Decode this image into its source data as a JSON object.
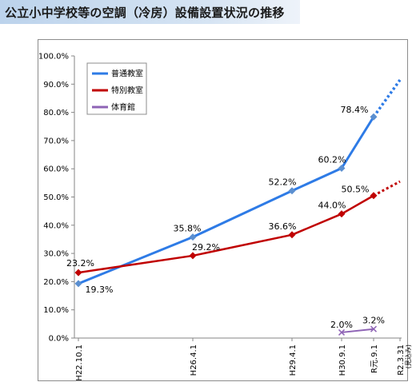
{
  "header": {
    "title": "公立小中学校等の空調（冷房）設備設置状況の推移"
  },
  "chart_data": {
    "type": "line",
    "x_categories": [
      {
        "id": "H22.10.1",
        "label": "H22.10.1"
      },
      {
        "id": "H26.4.1",
        "label": "H26.4.1"
      },
      {
        "id": "H29.4.1",
        "label": "H29.4.1"
      },
      {
        "id": "H30.9.1",
        "label": "H30.9.1"
      },
      {
        "id": "R1.9.1",
        "label": "R元.9.1"
      },
      {
        "id": "R2.3.31",
        "label": "R2.3.31",
        "sublabel": "(見込み)"
      }
    ],
    "ylim": [
      0,
      100
    ],
    "yticks": [
      "0.0%",
      "10.0%",
      "20.0%",
      "30.0%",
      "40.0%",
      "50.0%",
      "60.0%",
      "70.0%",
      "80.0%",
      "90.0%",
      "100.0%"
    ],
    "grid": false,
    "legend_position": "top-left",
    "series": [
      {
        "name": "普通教室",
        "color": "#2e7be6",
        "marker_color": "#5b8fd0",
        "marker": "diamond",
        "points": [
          {
            "x": "H22.10.1",
            "y": 19.3,
            "label": "19.3%"
          },
          {
            "x": "H26.4.1",
            "y": 35.8,
            "label": "35.8%"
          },
          {
            "x": "H29.4.1",
            "y": 52.2,
            "label": "52.2%"
          },
          {
            "x": "H30.9.1",
            "y": 60.2,
            "label": "60.2%"
          },
          {
            "x": "R1.9.1",
            "y": 78.4,
            "label": "78.4%"
          }
        ],
        "projection": {
          "x": "R2.3.31",
          "y": 91.5
        }
      },
      {
        "name": "特別教室",
        "color": "#c00000",
        "marker_color": "#c00000",
        "marker": "diamond",
        "points": [
          {
            "x": "H22.10.1",
            "y": 23.2,
            "label": "23.2%"
          },
          {
            "x": "H26.4.1",
            "y": 29.2,
            "label": "29.2%"
          },
          {
            "x": "H29.4.1",
            "y": 36.6,
            "label": "36.6%"
          },
          {
            "x": "H30.9.1",
            "y": 44.0,
            "label": "44.0%"
          },
          {
            "x": "R1.9.1",
            "y": 50.5,
            "label": "50.5%"
          }
        ],
        "projection": {
          "x": "R2.3.31",
          "y": 55.5
        }
      },
      {
        "name": "体育館",
        "color": "#8e63b5",
        "marker_color": "#8e63b5",
        "marker": "x",
        "points": [
          {
            "x": "H30.9.1",
            "y": 2.0,
            "label": "2.0%"
          },
          {
            "x": "R1.9.1",
            "y": 3.2,
            "label": "3.2%"
          }
        ]
      }
    ]
  }
}
